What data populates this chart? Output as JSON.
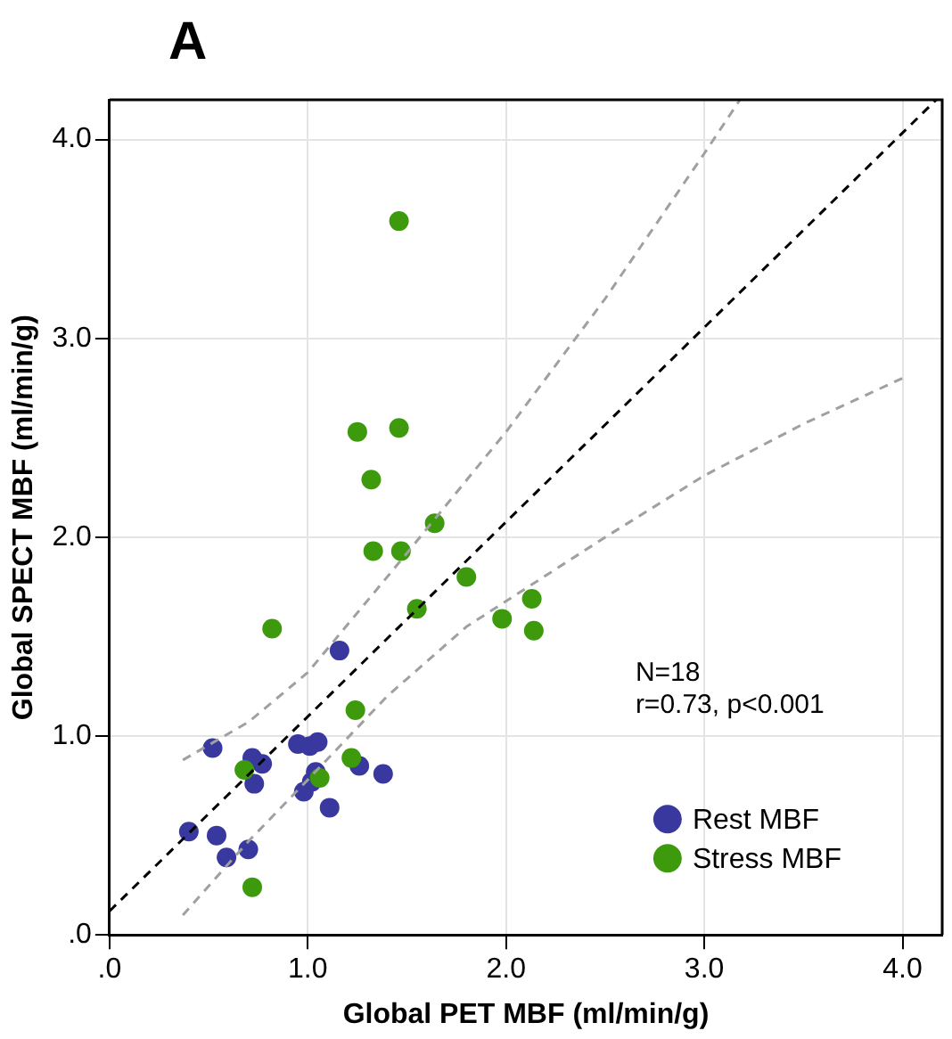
{
  "chart_data": {
    "type": "scatter",
    "title": "A",
    "xlabel": "Global PET MBF (ml/min/g)",
    "ylabel": "Global SPECT MBF (ml/min/g)",
    "xlim": [
      0,
      4.2
    ],
    "ylim": [
      0,
      4.2
    ],
    "xticks": [
      {
        "value": 0,
        "label": ".0"
      },
      {
        "value": 1,
        "label": "1.0"
      },
      {
        "value": 2,
        "label": "2.0"
      },
      {
        "value": 3,
        "label": "3.0"
      },
      {
        "value": 4,
        "label": "4.0"
      }
    ],
    "yticks": [
      {
        "value": 0,
        "label": ".0"
      },
      {
        "value": 1,
        "label": "1.0"
      },
      {
        "value": 2,
        "label": "2.0"
      },
      {
        "value": 3,
        "label": "3.0"
      },
      {
        "value": 4,
        "label": "4.0"
      }
    ],
    "grid": true,
    "legend": "bottom right",
    "marker": "circle",
    "annotations": [
      "N=18",
      "r=0.73, p<0.001"
    ],
    "series": [
      {
        "name": "Rest MBF",
        "color": "#38389f",
        "x": [
          1.16,
          0.52,
          0.72,
          0.77,
          0.73,
          0.95,
          1.01,
          1.05,
          1.04,
          1.02,
          0.98,
          1.26,
          1.38,
          1.11,
          0.4,
          0.54,
          0.59,
          0.7
        ],
        "values": [
          1.43,
          0.94,
          0.89,
          0.86,
          0.76,
          0.96,
          0.95,
          0.97,
          0.82,
          0.77,
          0.72,
          0.85,
          0.81,
          0.64,
          0.52,
          0.5,
          0.39,
          0.43
        ]
      },
      {
        "name": "Stress MBF",
        "color": "#3c9a0c",
        "x": [
          0.82,
          1.55,
          1.24,
          0.68,
          1.22,
          1.06,
          0.72,
          1.46,
          1.25,
          1.46,
          1.32,
          1.64,
          1.33,
          1.47,
          1.8,
          2.13,
          1.98,
          2.14
        ],
        "values": [
          1.54,
          1.64,
          1.13,
          0.83,
          0.89,
          0.79,
          0.24,
          3.59,
          2.53,
          2.55,
          2.29,
          2.07,
          1.93,
          1.93,
          1.8,
          1.69,
          1.59,
          1.53
        ]
      },
      {
        "type": "line",
        "color": "#000000",
        "line_style": "dashed",
        "marker": "none",
        "x": [
          0,
          4.17
        ],
        "values": [
          0.12,
          4.2
        ]
      },
      {
        "type": "line",
        "color": "#a0a0a0",
        "line_style": "dashed",
        "marker": "none",
        "x": [
          0.37,
          0.7,
          1.0,
          1.5,
          2.0,
          2.5,
          3.0,
          3.18
        ],
        "values": [
          0.88,
          1.07,
          1.32,
          1.92,
          2.53,
          3.2,
          3.93,
          4.2
        ]
      },
      {
        "type": "line",
        "color": "#a0a0a0",
        "line_style": "dashed",
        "marker": "none",
        "x": [
          0.37,
          0.7,
          1.0,
          1.4,
          1.8,
          2.5,
          3.0,
          3.5,
          4.0
        ],
        "values": [
          0.1,
          0.47,
          0.78,
          1.2,
          1.55,
          2.0,
          2.31,
          2.57,
          2.8
        ]
      }
    ]
  }
}
